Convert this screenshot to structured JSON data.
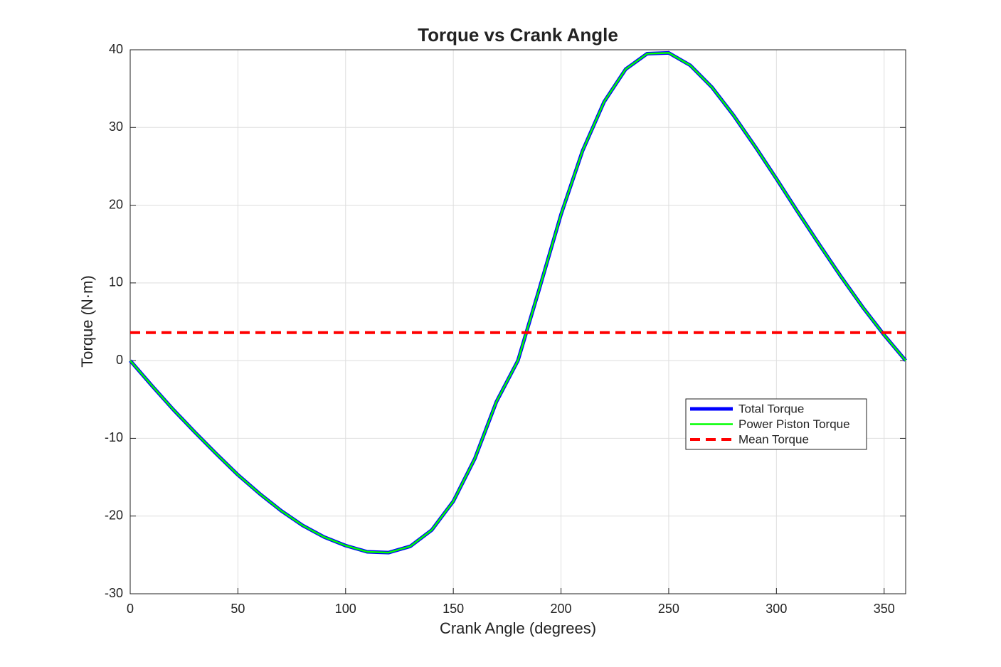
{
  "chart_data": {
    "type": "line",
    "title": "Torque vs Crank Angle",
    "xlabel": "Crank Angle (degrees)",
    "ylabel": "Torque (N·m)",
    "x": [
      0,
      10,
      20,
      30,
      40,
      50,
      60,
      70,
      80,
      90,
      100,
      110,
      120,
      130,
      140,
      150,
      160,
      170,
      180,
      190,
      200,
      210,
      220,
      230,
      240,
      250,
      260,
      270,
      280,
      290,
      300,
      310,
      320,
      330,
      340,
      350,
      360
    ],
    "series": [
      {
        "name": "Total Torque",
        "color": "#0000ff",
        "width": 5,
        "values": [
          0,
          -3.2,
          -6.3,
          -9.2,
          -12.0,
          -14.7,
          -17.1,
          -19.3,
          -21.2,
          -22.7,
          -23.8,
          -24.6,
          -24.7,
          -23.9,
          -21.8,
          -18.1,
          -12.6,
          -5.3,
          0,
          9.3,
          18.8,
          27.0,
          33.3,
          37.5,
          39.5,
          39.6,
          38.0,
          35.2,
          31.6,
          27.6,
          23.4,
          19.1,
          14.9,
          10.8,
          6.9,
          3.3,
          0
        ]
      },
      {
        "name": "Power Piston Torque",
        "color": "#00ff00",
        "width": 2.5,
        "values": [
          0,
          -3.2,
          -6.3,
          -9.2,
          -12.0,
          -14.7,
          -17.1,
          -19.3,
          -21.2,
          -22.7,
          -23.8,
          -24.6,
          -24.7,
          -23.9,
          -21.8,
          -18.1,
          -12.6,
          -5.3,
          0,
          9.3,
          18.8,
          27.0,
          33.3,
          37.5,
          39.5,
          39.6,
          38.0,
          35.2,
          31.6,
          27.6,
          23.4,
          19.1,
          14.9,
          10.8,
          6.9,
          3.3,
          0
        ]
      },
      {
        "name": "Mean Torque",
        "color": "#ff0000",
        "width": 4,
        "dashed": true,
        "x": [
          0,
          360
        ],
        "values": [
          3.6,
          3.6
        ]
      }
    ],
    "xlim": [
      0,
      360
    ],
    "xticks": [
      0,
      50,
      100,
      150,
      200,
      250,
      300,
      350
    ],
    "ylim": [
      -30,
      40
    ],
    "yticks": [
      -30,
      -20,
      -10,
      0,
      10,
      20,
      30,
      40
    ],
    "grid": true,
    "legend": "east"
  }
}
